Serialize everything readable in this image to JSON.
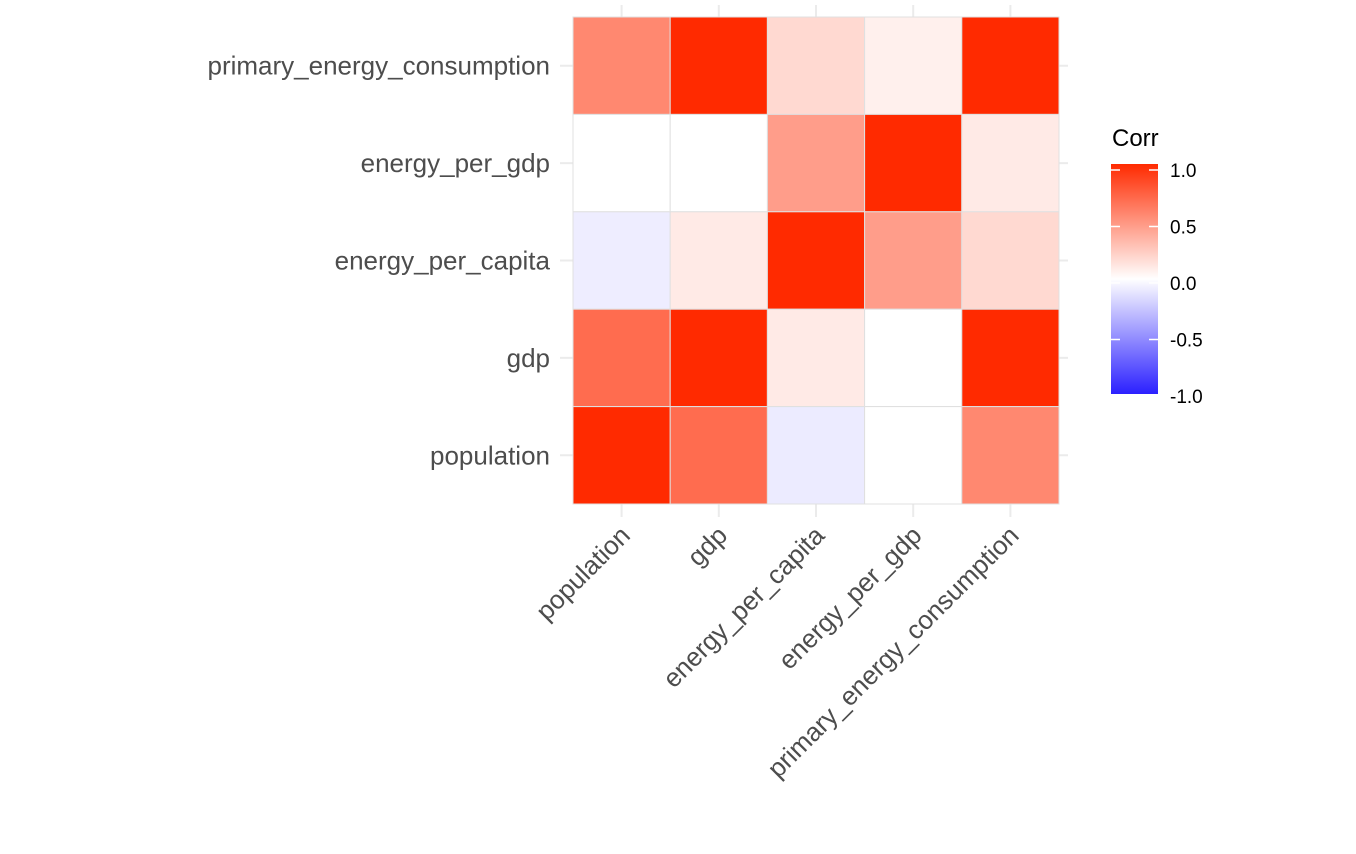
{
  "chart_data": {
    "type": "heatmap",
    "title": "",
    "xlabel": "",
    "ylabel": "",
    "x_categories": [
      "population",
      "gdp",
      "energy_per_capita",
      "energy_per_gdp",
      "primary_energy_consumption"
    ],
    "y_categories": [
      "primary_energy_consumption",
      "energy_per_gdp",
      "energy_per_capita",
      "gdp",
      "population"
    ],
    "matrix": [
      [
        0.56,
        1.0,
        0.18,
        0.07,
        1.0
      ],
      [
        0.0,
        0.0,
        0.46,
        1.0,
        0.1
      ],
      [
        -0.08,
        0.1,
        1.0,
        0.46,
        0.18
      ],
      [
        0.69,
        1.0,
        0.1,
        0.0,
        1.0
      ],
      [
        1.0,
        0.69,
        -0.09,
        0.0,
        0.56
      ]
    ],
    "legend": {
      "title": "Corr",
      "placement": "right",
      "ticks": [
        "1.0",
        "0.5",
        "0.0",
        "-0.5",
        "-1.0"
      ],
      "low_color": "#2b20ff",
      "mid_color": "#ffffff",
      "high_color": "#ff2a00",
      "range": [
        -1,
        1
      ]
    },
    "grid": true
  }
}
